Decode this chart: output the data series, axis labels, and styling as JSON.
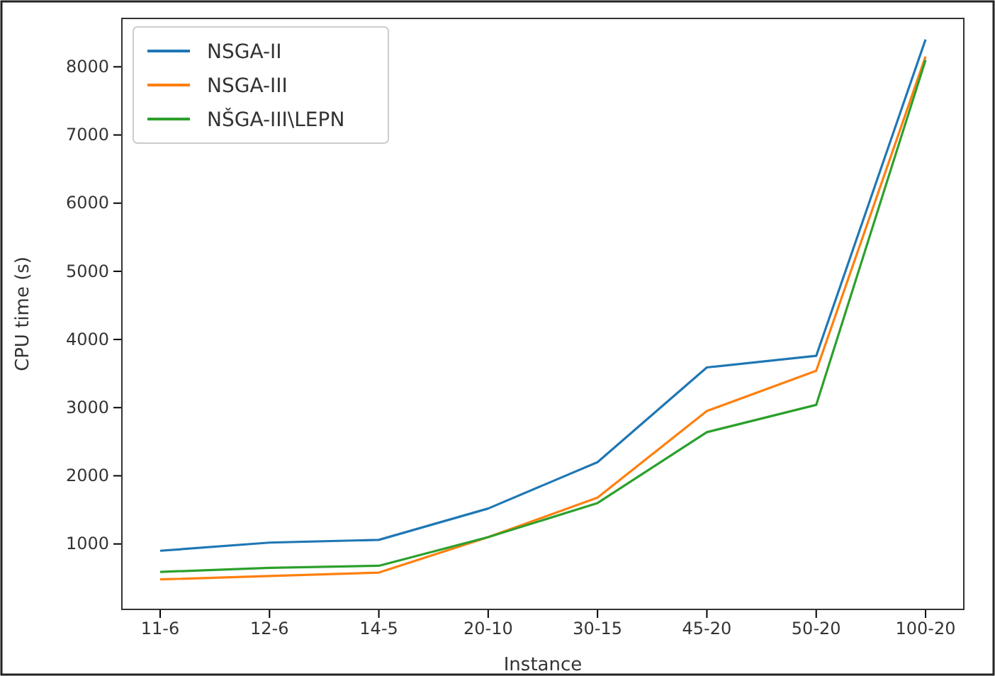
{
  "chart_data": {
    "type": "line",
    "xlabel": "Instance",
    "ylabel": "CPU time (s)",
    "categories": [
      "11-6",
      "12-6",
      "14-5",
      "20-10",
      "30-15",
      "45-20",
      "50-20",
      "100-20"
    ],
    "series": [
      {
        "name": "NSGA-II",
        "color": "#1f77b4",
        "values": [
          900,
          1020,
          1060,
          1520,
          2200,
          3590,
          3760,
          8400
        ]
      },
      {
        "name": "NSGA-III",
        "color": "#ff7f0e",
        "values": [
          480,
          530,
          580,
          1100,
          1680,
          2950,
          3540,
          8150
        ]
      },
      {
        "name": "NŠGA-III\\LEPN",
        "color": "#2ca02c",
        "values": [
          590,
          650,
          680,
          1100,
          1600,
          2640,
          3040,
          8100
        ]
      }
    ],
    "ylim": [
      40,
      8710
    ],
    "yticks": [
      1000,
      2000,
      3000,
      4000,
      5000,
      6000,
      7000,
      8000
    ],
    "legend": "top left",
    "grid": false
  }
}
